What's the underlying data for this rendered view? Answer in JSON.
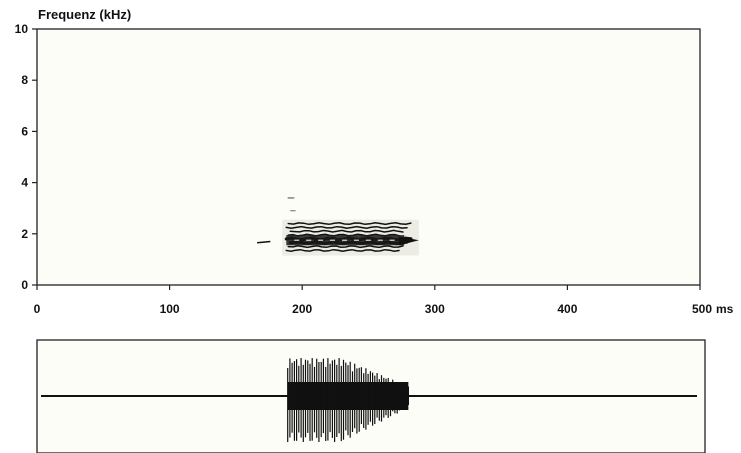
{
  "chart_data": [
    {
      "type": "heatmap",
      "name": "spectrogram",
      "ylabel": "Frequenz (kHz)",
      "xlim": [
        0,
        500
      ],
      "ylim": [
        0,
        10
      ],
      "x_ticks": [
        "0",
        "100",
        "200",
        "300",
        "400",
        "500"
      ],
      "x_unit": "ms",
      "y_ticks": [
        "0",
        "2",
        "4",
        "6",
        "8",
        "10"
      ],
      "grid": false,
      "background": "#fdfdf8",
      "ink": "#111111",
      "call": {
        "start_ms": 188,
        "end_ms": 285,
        "freq_min_khz": 1.3,
        "freq_max_khz": 2.4,
        "harmonics_khz": [
          1.35,
          1.5,
          1.65,
          1.8,
          1.95,
          2.1,
          2.25,
          2.4
        ]
      }
    },
    {
      "type": "line",
      "name": "oscillogram",
      "xlim": [
        0,
        500
      ],
      "burst_start_ms": 188,
      "burst_end_ms": 280
    }
  ]
}
